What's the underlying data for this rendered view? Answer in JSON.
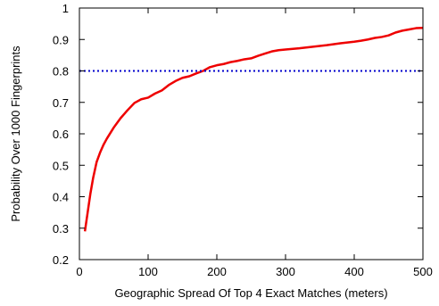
{
  "chart_data": {
    "type": "line",
    "xlabel": "Geographic Spread Of Top 4 Exact Matches (meters)",
    "ylabel": "Probability Over 1000 Fingerprints",
    "xlim": [
      0,
      500
    ],
    "ylim": [
      0.2,
      1
    ],
    "x_ticks": [
      0,
      100,
      200,
      300,
      400,
      500
    ],
    "y_ticks": [
      0.2,
      0.3,
      0.4,
      0.5,
      0.6,
      0.7,
      0.8,
      0.9,
      1
    ],
    "x_tick_labels": [
      "0",
      "100",
      "200",
      "300",
      "400",
      "500"
    ],
    "y_tick_labels": [
      "0.2",
      "0.3",
      "0.4",
      "0.5",
      "0.6",
      "0.7",
      "0.8",
      "0.9",
      "1"
    ],
    "grid": false,
    "legend": "none",
    "series": [
      {
        "color": "#ee0000",
        "style": "solid",
        "x": [
          8,
          12,
          16,
          20,
          25,
          30,
          35,
          40,
          50,
          60,
          70,
          80,
          90,
          100,
          110,
          120,
          130,
          140,
          150,
          160,
          170,
          180,
          190,
          200,
          210,
          220,
          230,
          240,
          250,
          260,
          270,
          280,
          290,
          300,
          320,
          340,
          360,
          380,
          400,
          410,
          420,
          430,
          440,
          450,
          460,
          470,
          480,
          490,
          500
        ],
        "y": [
          0.29,
          0.35,
          0.41,
          0.46,
          0.51,
          0.54,
          0.565,
          0.585,
          0.62,
          0.65,
          0.675,
          0.698,
          0.71,
          0.715,
          0.728,
          0.738,
          0.755,
          0.768,
          0.778,
          0.783,
          0.792,
          0.8,
          0.812,
          0.818,
          0.822,
          0.828,
          0.832,
          0.837,
          0.84,
          0.848,
          0.855,
          0.862,
          0.866,
          0.868,
          0.872,
          0.877,
          0.882,
          0.888,
          0.893,
          0.896,
          0.9,
          0.905,
          0.908,
          0.913,
          0.922,
          0.928,
          0.932,
          0.936,
          0.937
        ]
      },
      {
        "color": "#0000cc",
        "style": "dotted",
        "x": [
          0,
          500
        ],
        "y": [
          0.8,
          0.8
        ]
      }
    ]
  }
}
